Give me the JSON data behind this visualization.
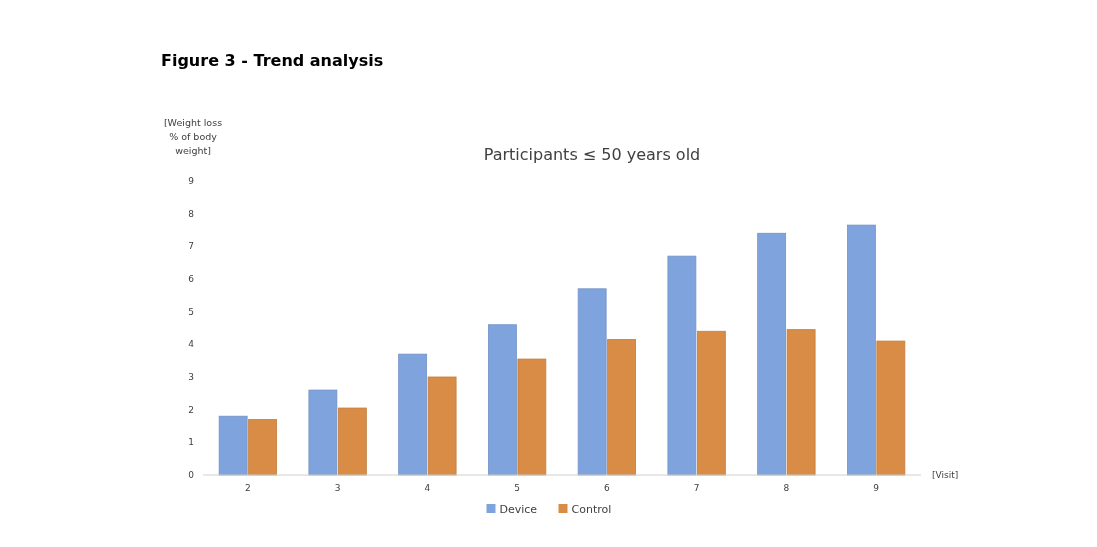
{
  "chart_data": {
    "type": "bar",
    "title": "Figure 3 - Trend analysis",
    "subtitle": "Participants ≤ 50 years old",
    "xlabel": "[Visit]",
    "ylabel": "[Weight loss % of body weight]",
    "categories": [
      "2",
      "3",
      "4",
      "5",
      "6",
      "7",
      "8",
      "9"
    ],
    "series": [
      {
        "name": "Device",
        "color": "#7fa3dc",
        "values": [
          1.8,
          2.6,
          3.7,
          4.6,
          5.7,
          6.7,
          7.4,
          7.65
        ]
      },
      {
        "name": "Control",
        "color": "#d98c45",
        "values": [
          1.7,
          2.05,
          3.0,
          3.55,
          4.15,
          4.4,
          4.45,
          4.1
        ]
      }
    ],
    "ylim": [
      0,
      9
    ],
    "yticks": [
      0,
      1,
      2,
      3,
      4,
      5,
      6,
      7,
      8,
      9
    ],
    "grid": false,
    "legend": "bottom"
  }
}
